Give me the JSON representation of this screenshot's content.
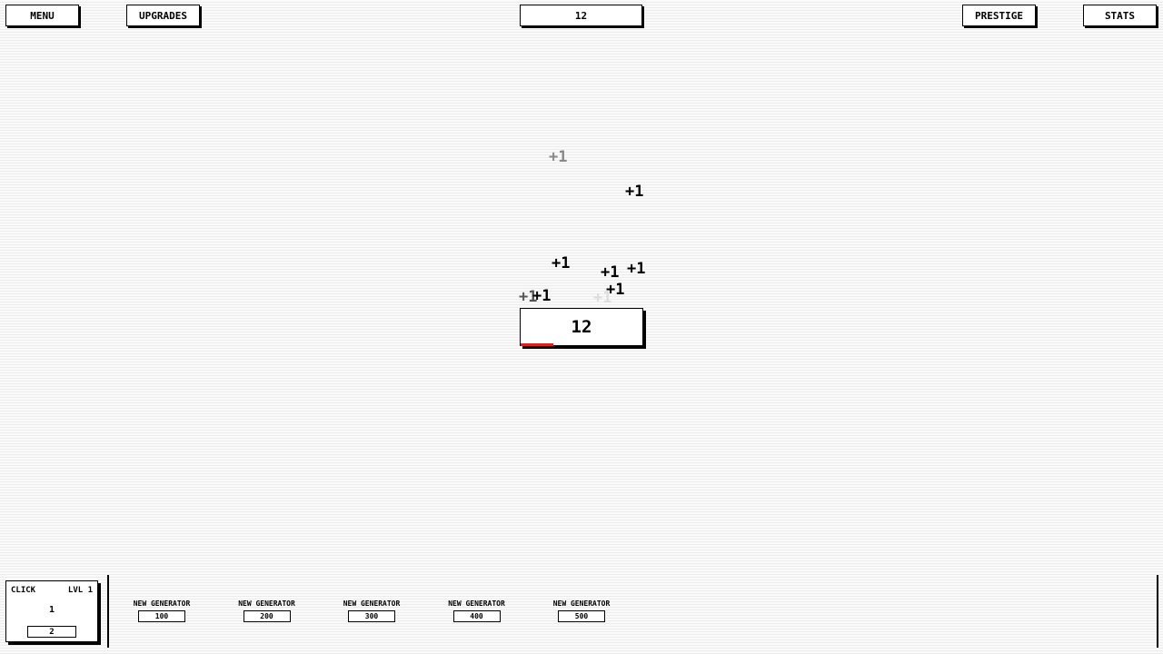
{
  "topbar": {
    "menu": "MENU",
    "upgrades": "UPGRADES",
    "counter": "12",
    "prestige": "PRESTIGE",
    "stats": "STATS"
  },
  "clicker": {
    "value": "12",
    "progress_percent": 27,
    "progress_color": "#e02020"
  },
  "floating_texts": [
    "+1",
    "+1",
    "+1",
    "+1",
    "+1",
    "+1",
    "+1",
    "+1",
    "+1"
  ],
  "click_card": {
    "title": "CLICK",
    "level": "LVL 1",
    "value": "1",
    "cost": "2"
  },
  "generators": [
    {
      "label": "NEW GENERATOR",
      "cost": "100"
    },
    {
      "label": "NEW GENERATOR",
      "cost": "200"
    },
    {
      "label": "NEW GENERATOR",
      "cost": "300"
    },
    {
      "label": "NEW GENERATOR",
      "cost": "400"
    },
    {
      "label": "NEW GENERATOR",
      "cost": "500"
    }
  ]
}
